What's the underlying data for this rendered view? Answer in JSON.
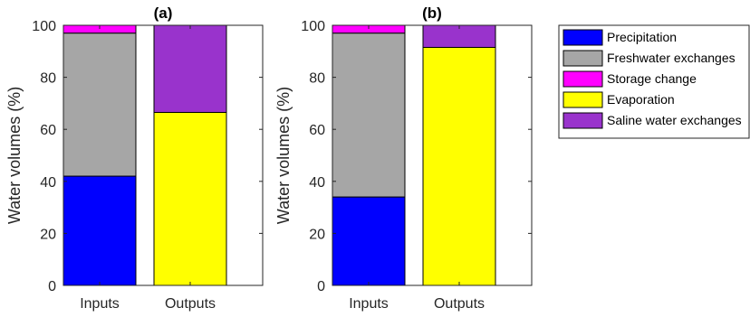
{
  "chart_data": [
    {
      "type": "stacked-bar",
      "title": "(a)",
      "ylabel": "Water volumes (%)",
      "xlabel": "",
      "ylim": [
        0,
        100
      ],
      "yticks": [
        "0",
        "20",
        "40",
        "60",
        "80",
        "100"
      ],
      "categories": [
        "Inputs",
        "Outputs"
      ],
      "series": [
        {
          "name": "Precipitation",
          "color": "#0000ff",
          "values": [
            42,
            0
          ]
        },
        {
          "name": "Freshwater exchanges",
          "color": "#a6a6a6",
          "values": [
            55,
            0
          ]
        },
        {
          "name": "Storage change",
          "color": "#ff00ff",
          "values": [
            3,
            0
          ]
        },
        {
          "name": "Evaporation",
          "color": "#ffff00",
          "values": [
            0,
            66.5
          ]
        },
        {
          "name": "Saline water exchanges",
          "color": "#9933cc",
          "values": [
            0,
            33.5
          ]
        }
      ],
      "grid": false
    },
    {
      "type": "stacked-bar",
      "title": "(b)",
      "ylabel": "Water volumes (%)",
      "xlabel": "",
      "ylim": [
        0,
        100
      ],
      "yticks": [
        "0",
        "20",
        "40",
        "60",
        "80",
        "100"
      ],
      "categories": [
        "Inputs",
        "Outputs"
      ],
      "series": [
        {
          "name": "Precipitation",
          "color": "#0000ff",
          "values": [
            34,
            0
          ]
        },
        {
          "name": "Freshwater exchanges",
          "color": "#a6a6a6",
          "values": [
            63,
            0
          ]
        },
        {
          "name": "Storage change",
          "color": "#ff00ff",
          "values": [
            3,
            0
          ]
        },
        {
          "name": "Evaporation",
          "color": "#ffff00",
          "values": [
            0,
            91.5
          ]
        },
        {
          "name": "Saline water exchanges",
          "color": "#9933cc",
          "values": [
            0,
            8.5
          ]
        }
      ],
      "grid": false
    }
  ],
  "legend": {
    "position": "outside-right",
    "entries": [
      {
        "label": "Precipitation",
        "color": "#0000ff"
      },
      {
        "label": "Freshwater exchanges",
        "color": "#a6a6a6"
      },
      {
        "label": "Storage change",
        "color": "#ff00ff"
      },
      {
        "label": "Evaporation",
        "color": "#ffff00"
      },
      {
        "label": "Saline water exchanges",
        "color": "#9933cc"
      }
    ]
  }
}
